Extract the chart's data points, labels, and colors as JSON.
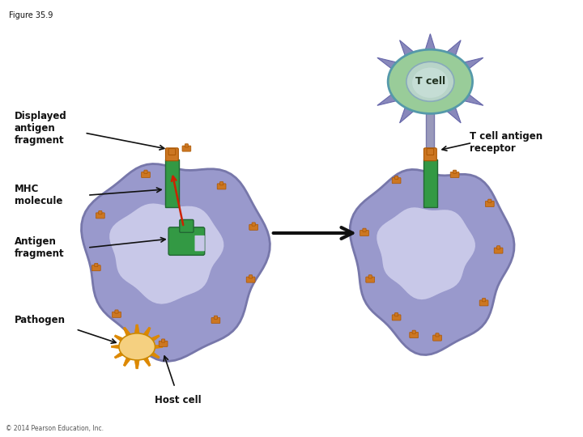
{
  "title": "Figure 35.9",
  "copyright": "© 2014 Pearson Education, Inc.",
  "labels": {
    "displayed_antigen": "Displayed\nantigen\nfragment",
    "mhc_molecule": "MHC\nmolecule",
    "antigen_fragment": "Antigen\nfragment",
    "pathogen": "Pathogen",
    "host_cell": "Host cell",
    "t_cell": "T cell",
    "t_cell_receptor": "T cell antigen\nreceptor"
  },
  "colors": {
    "bg_color": "#ffffff",
    "host_cell_body": "#9999cc",
    "host_cell_inner": "#c8c8e8",
    "t_cell_outer": "#99cc99",
    "mhc_green": "#339944",
    "antigen_orange": "#cc7722",
    "pathogen_body": "#f5d080",
    "pathogen_spikes": "#dd8800",
    "red_arrow": "#cc2200",
    "receptor_stem": "#9999bb",
    "text_color": "#111111",
    "t_cell_spikes": "#8888bb",
    "edge_purple": "#7777aa"
  }
}
